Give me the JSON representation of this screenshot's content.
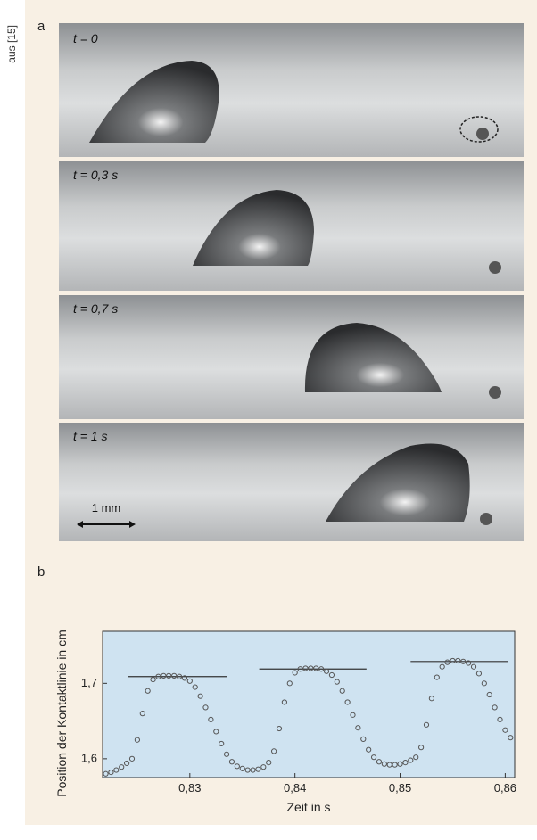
{
  "source": "aus [15]",
  "panel_a": {
    "label": "a",
    "frames": [
      {
        "label": "t = 0"
      },
      {
        "label": "t = 0,3 s"
      },
      {
        "label": "t = 0,7 s"
      },
      {
        "label": "t = 1 s"
      }
    ],
    "scale_label": "1 mm"
  },
  "panel_b": {
    "label": "b"
  },
  "chart_data": {
    "type": "scatter",
    "x_label": "Zeit in s",
    "y_label": "Position der Kontaktlinie in cm",
    "xlim": [
      0.8217,
      0.8609
    ],
    "ylim": [
      1.575,
      1.769
    ],
    "xticks": [
      {
        "value": 0.83,
        "label": "0,83"
      },
      {
        "value": 0.84,
        "label": "0,84"
      },
      {
        "value": 0.85,
        "label": "0,85"
      },
      {
        "value": 0.86,
        "label": "0,86"
      }
    ],
    "yticks": [
      {
        "value": 1.6,
        "label": "1,6"
      },
      {
        "value": 1.7,
        "label": "1,7"
      }
    ],
    "color": "#555555",
    "background": "#cfe3f1",
    "x": [
      0.822,
      0.8225,
      0.823,
      0.8235,
      0.824,
      0.8245,
      0.825,
      0.8255,
      0.826,
      0.8265,
      0.827,
      0.8275,
      0.828,
      0.8285,
      0.829,
      0.8295,
      0.83,
      0.8305,
      0.831,
      0.8315,
      0.832,
      0.8325,
      0.833,
      0.8335,
      0.834,
      0.8345,
      0.835,
      0.8355,
      0.836,
      0.8365,
      0.837,
      0.8375,
      0.838,
      0.8385,
      0.839,
      0.8395,
      0.84,
      0.8405,
      0.841,
      0.8415,
      0.842,
      0.8425,
      0.843,
      0.8435,
      0.844,
      0.8445,
      0.845,
      0.8455,
      0.846,
      0.8465,
      0.847,
      0.8475,
      0.848,
      0.8485,
      0.849,
      0.8495,
      0.85,
      0.8505,
      0.851,
      0.8515,
      0.852,
      0.8525,
      0.853,
      0.8535,
      0.854,
      0.8545,
      0.855,
      0.8555,
      0.856,
      0.8565,
      0.857,
      0.8575,
      0.858,
      0.8585,
      0.859,
      0.8595,
      0.86,
      0.8605
    ],
    "values": [
      1.58,
      1.582,
      1.585,
      1.589,
      1.594,
      1.6,
      1.625,
      1.66,
      1.69,
      1.705,
      1.709,
      1.71,
      1.71,
      1.71,
      1.709,
      1.707,
      1.703,
      1.695,
      1.683,
      1.668,
      1.652,
      1.636,
      1.62,
      1.606,
      1.596,
      1.59,
      1.587,
      1.585,
      1.585,
      1.586,
      1.589,
      1.595,
      1.61,
      1.64,
      1.675,
      1.7,
      1.714,
      1.719,
      1.72,
      1.72,
      1.72,
      1.719,
      1.716,
      1.711,
      1.702,
      1.69,
      1.675,
      1.658,
      1.641,
      1.626,
      1.612,
      1.602,
      1.596,
      1.593,
      1.592,
      1.592,
      1.593,
      1.595,
      1.598,
      1.602,
      1.615,
      1.645,
      1.68,
      1.708,
      1.722,
      1.728,
      1.73,
      1.73,
      1.729,
      1.727,
      1.722,
      1.713,
      1.7,
      1.685,
      1.668,
      1.652,
      1.638,
      1.628
    ],
    "ref_lines": [
      {
        "y": 1.709,
        "x": [
          0.8241,
          0.8335
        ]
      },
      {
        "y": 1.719,
        "x": [
          0.8366,
          0.8468
        ]
      },
      {
        "y": 1.729,
        "x": [
          0.851,
          0.8603
        ]
      }
    ]
  }
}
